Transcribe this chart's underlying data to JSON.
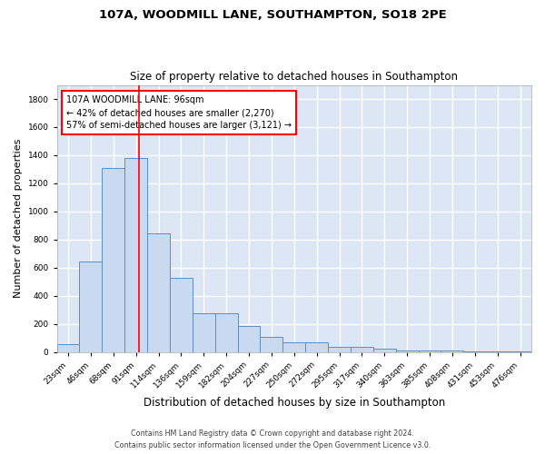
{
  "title": "107A, WOODMILL LANE, SOUTHAMPTON, SO18 2PE",
  "subtitle": "Size of property relative to detached houses in Southampton",
  "xlabel": "Distribution of detached houses by size in Southampton",
  "ylabel": "Number of detached properties",
  "categories": [
    "23sqm",
    "46sqm",
    "68sqm",
    "91sqm",
    "114sqm",
    "136sqm",
    "159sqm",
    "182sqm",
    "204sqm",
    "227sqm",
    "250sqm",
    "272sqm",
    "295sqm",
    "317sqm",
    "340sqm",
    "363sqm",
    "385sqm",
    "408sqm",
    "431sqm",
    "453sqm",
    "476sqm"
  ],
  "values": [
    55,
    645,
    1310,
    1380,
    845,
    530,
    275,
    275,
    185,
    105,
    65,
    65,
    38,
    38,
    25,
    13,
    13,
    10,
    3,
    3,
    3
  ],
  "bar_color": "#c9d9ef",
  "bar_edge_color": "#5b8ec4",
  "red_line_x": 3.13,
  "annotation_text1": "107A WOODMILL LANE: 96sqm",
  "annotation_text2": "← 42% of detached houses are smaller (2,270)",
  "annotation_text3": "57% of semi-detached houses are larger (3,121) →",
  "footer1": "Contains HM Land Registry data © Crown copyright and database right 2024.",
  "footer2": "Contains public sector information licensed under the Open Government Licence v3.0.",
  "ylim": [
    0,
    1900
  ],
  "bg_color": "#ffffff",
  "plot_bg_color": "#dce6f5",
  "grid_color": "#ffffff"
}
